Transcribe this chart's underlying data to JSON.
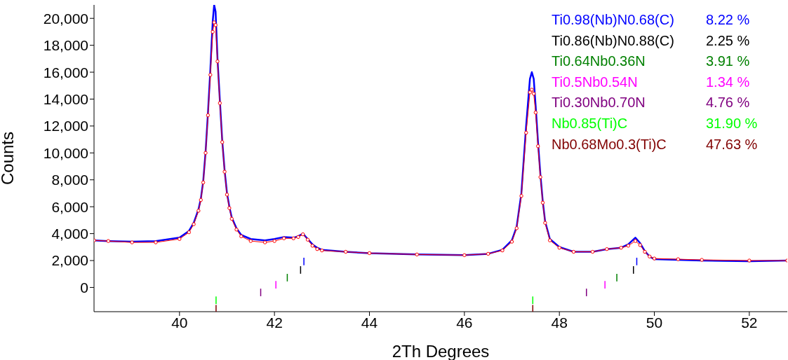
{
  "chart_data": {
    "type": "line",
    "xlabel": "2Th Degrees",
    "ylabel": "Counts",
    "xlim": [
      38.2,
      52.8
    ],
    "xticks": [
      40,
      42,
      44,
      46,
      48,
      50,
      52
    ],
    "ylim": [
      -1800,
      21000
    ],
    "yticks": [
      0,
      {
        "value": 2000,
        "label": "2,000"
      },
      {
        "value": 4000,
        "label": "4,000"
      },
      {
        "value": 6000,
        "label": "6,000"
      },
      {
        "value": 8000,
        "label": "8,000"
      },
      {
        "value": 10000,
        "label": "10,000"
      },
      {
        "value": 12000,
        "label": "12,000"
      },
      {
        "value": 14000,
        "label": "14,000"
      },
      {
        "value": 16000,
        "label": "16,000"
      },
      {
        "value": 18000,
        "label": "18,000"
      },
      {
        "value": 20000,
        "label": "20,000"
      }
    ],
    "grid": false,
    "series": [
      {
        "color": "#0000ff",
        "marker": "none",
        "x": [
          38.2,
          38.5,
          39,
          39.5,
          40,
          40.2,
          40.3,
          40.4,
          40.45,
          40.5,
          40.55,
          40.6,
          40.65,
          40.7,
          40.73,
          40.76,
          40.8,
          40.85,
          40.9,
          40.95,
          41,
          41.05,
          41.1,
          41.2,
          41.3,
          41.5,
          41.8,
          42,
          42.2,
          42.4,
          42.5,
          42.6,
          42.7,
          42.8,
          42.9,
          43,
          43.5,
          44,
          45,
          46,
          46.5,
          46.8,
          47,
          47.1,
          47.2,
          47.3,
          47.38,
          47.42,
          47.46,
          47.5,
          47.55,
          47.6,
          47.65,
          47.7,
          47.8,
          48,
          48.3,
          48.7,
          49,
          49.3,
          49.45,
          49.6,
          49.7,
          49.8,
          49.9,
          50,
          50.5,
          51,
          52,
          52.8
        ],
        "values": [
          3500,
          3450,
          3400,
          3450,
          3700,
          4200,
          4800,
          5800,
          6600,
          7900,
          10100,
          13000,
          16200,
          19800,
          21000,
          20500,
          17000,
          13900,
          10900,
          8700,
          7000,
          6000,
          5200,
          4400,
          3900,
          3600,
          3500,
          3600,
          3750,
          3700,
          3800,
          4000,
          3600,
          3200,
          2950,
          2800,
          2650,
          2550,
          2450,
          2400,
          2500,
          2800,
          3500,
          4500,
          7000,
          12000,
          15500,
          16000,
          15500,
          13500,
          10800,
          8400,
          6400,
          4900,
          3600,
          3000,
          2650,
          2650,
          2850,
          2950,
          3200,
          3700,
          3300,
          2700,
          2300,
          2100,
          2050,
          2000,
          1950,
          2000
        ]
      },
      {
        "color": "#ff0000",
        "marker": "circle",
        "x": [
          38.2,
          38.5,
          39,
          39.5,
          40,
          40.2,
          40.3,
          40.4,
          40.45,
          40.5,
          40.55,
          40.6,
          40.65,
          40.7,
          40.73,
          40.76,
          40.8,
          40.85,
          40.9,
          40.95,
          41,
          41.05,
          41.1,
          41.2,
          41.3,
          41.5,
          41.8,
          42,
          42.2,
          42.4,
          42.5,
          42.6,
          42.7,
          42.8,
          42.9,
          43,
          43.5,
          44,
          45,
          46,
          46.5,
          46.8,
          47,
          47.1,
          47.2,
          47.3,
          47.38,
          47.42,
          47.46,
          47.5,
          47.55,
          47.6,
          47.65,
          47.7,
          47.8,
          48,
          48.3,
          48.7,
          49,
          49.3,
          49.45,
          49.6,
          49.7,
          49.8,
          49.9,
          50,
          50.5,
          51,
          52,
          52.8
        ],
        "values": [
          3500,
          3450,
          3350,
          3350,
          3600,
          4100,
          4700,
          5700,
          6500,
          7800,
          10000,
          12800,
          15800,
          19000,
          19700,
          19500,
          16800,
          13700,
          10800,
          8600,
          6900,
          5900,
          5100,
          4300,
          3800,
          3450,
          3350,
          3450,
          3650,
          3650,
          3750,
          3950,
          3550,
          3100,
          2850,
          2750,
          2650,
          2550,
          2450,
          2400,
          2500,
          2750,
          3400,
          4400,
          6800,
          11500,
          14500,
          14700,
          14400,
          13000,
          10500,
          8200,
          6300,
          4800,
          3500,
          2950,
          2650,
          2650,
          2850,
          2950,
          3100,
          3450,
          3150,
          2650,
          2300,
          2150,
          2100,
          2050,
          2000,
          2000
        ]
      },
      {
        "type": "bar",
        "name": "Ti0.98(Nb)N0.68(C)",
        "color": "#0000ff",
        "x": [
          42.62,
          49.63
        ],
        "base": [
          1650,
          1650
        ],
        "values": [
          560,
          560
        ]
      },
      {
        "type": "bar",
        "name": "Ti0.86(Nb)N0.88(C)",
        "color": "#000000",
        "x": [
          42.55,
          49.56
        ],
        "base": [
          1020,
          1020
        ],
        "values": [
          560,
          560
        ]
      },
      {
        "type": "bar",
        "name": "Ti0.64Nb0.36N",
        "color": "#008000",
        "x": [
          42.27,
          49.21
        ],
        "base": [
          450,
          450
        ],
        "values": [
          560,
          560
        ]
      },
      {
        "type": "bar",
        "name": "Ti0.5Nb0.54N",
        "color": "#ff00ff",
        "x": [
          42.03,
          48.96
        ],
        "base": [
          -80,
          -80
        ],
        "values": [
          560,
          560
        ]
      },
      {
        "type": "bar",
        "name": "Ti0.30Nb0.70N",
        "color": "#800080",
        "x": [
          41.71,
          48.57
        ],
        "base": [
          -650,
          -650
        ],
        "values": [
          560,
          560
        ]
      },
      {
        "type": "bar",
        "name": "Nb0.85(Ti)C",
        "color": "#00ff00",
        "x": [
          40.77,
          47.44
        ],
        "base": [
          -1230,
          -1230
        ],
        "values": [
          560,
          560
        ]
      },
      {
        "type": "bar",
        "name": "Nb0.68Mo0.3(Ti)C",
        "color": "#800000",
        "x": [
          40.77,
          47.44
        ],
        "base": [
          -1800,
          -1800
        ],
        "values": [
          500,
          500
        ]
      }
    ],
    "annotations": [
      "8.22 %",
      "2.25 %",
      "3.91 %",
      "1.34 %",
      "4.76 %",
      "31.90 %",
      "47.63 %"
    ]
  }
}
